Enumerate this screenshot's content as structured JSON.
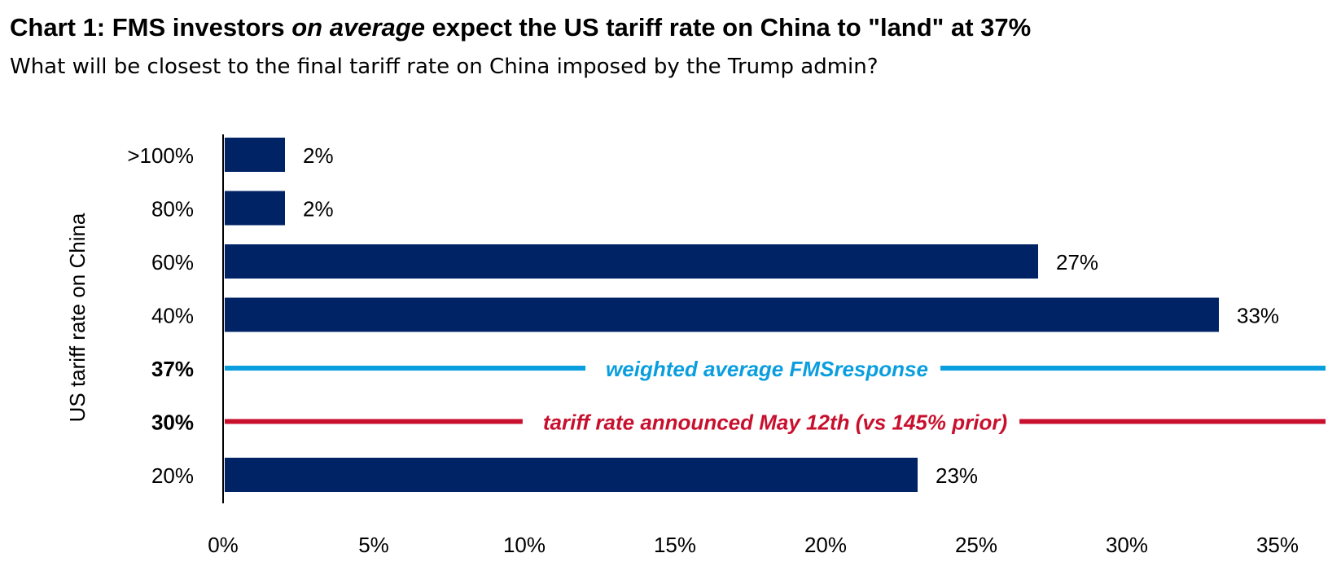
{
  "chart_data": {
    "type": "bar",
    "orientation": "horizontal",
    "title_parts": [
      "Chart 1: FMS investors ",
      "on average",
      " expect the US tariff rate on China to \"land\" at 37%"
    ],
    "subtitle": "What will be closest to the final tariff rate on China imposed by the Trump admin?",
    "ylabel": "US tariff rate on China",
    "categories": [
      ">100%",
      "80%",
      "60%",
      "40%",
      "20%"
    ],
    "values": [
      2,
      2,
      27,
      33,
      23
    ],
    "data_labels": [
      "2%",
      "2%",
      "27%",
      "33%",
      "23%"
    ],
    "xlim": [
      0,
      36
    ],
    "xticks": [
      0,
      5,
      10,
      15,
      20,
      25,
      30,
      35
    ],
    "xtick_labels": [
      "0%",
      "5%",
      "10%",
      "15%",
      "20%",
      "25%",
      "30%",
      "35%"
    ],
    "bar_color": "#002366",
    "reference_lines": [
      {
        "category_label": "37%",
        "text": "weighted average FMSresponse",
        "color": "#0a9ede"
      },
      {
        "category_label": "30%",
        "text": "tariff rate announced May 12th (vs 145% prior)",
        "color": "#c8102e"
      }
    ],
    "row_order": [
      ">100%",
      "80%",
      "60%",
      "40%",
      "37%",
      "30%",
      "20%"
    ],
    "grid": false
  }
}
